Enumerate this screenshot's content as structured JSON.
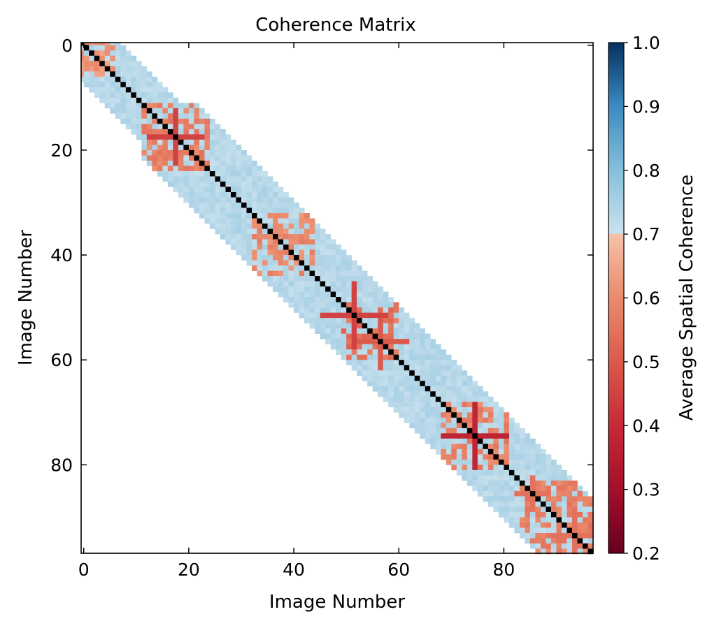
{
  "chart_data": {
    "type": "heatmap",
    "title": "Coherence Matrix",
    "xlabel": "Image Number",
    "ylabel": "Image Number",
    "n_images": 98,
    "xlim": [
      0,
      97
    ],
    "ylim": [
      97,
      0
    ],
    "x_ticks": [
      "0",
      "20",
      "40",
      "60",
      "80"
    ],
    "y_ticks": [
      "0",
      "20",
      "40",
      "60",
      "80"
    ],
    "colorbar": {
      "label": "Average Spatial Coherence",
      "range": [
        0.2,
        1.0
      ],
      "ticks": [
        "0.2",
        "0.3",
        "0.4",
        "0.5",
        "0.6",
        "0.7",
        "0.8",
        "0.9",
        "1.0"
      ],
      "colormap": "RdBu",
      "stops": [
        {
          "value": 0.2,
          "color": "#67001f"
        },
        {
          "value": 0.3,
          "color": "#a50f2a"
        },
        {
          "value": 0.4,
          "color": "#c72a37"
        },
        {
          "value": 0.5,
          "color": "#db5a4c"
        },
        {
          "value": 0.6,
          "color": "#ea8a6c"
        },
        {
          "value": 0.7,
          "color": "#f6c2a8"
        },
        {
          "value": 0.701,
          "color": "#cbe2ee"
        },
        {
          "value": 0.8,
          "color": "#86bfdb"
        },
        {
          "value": 0.9,
          "color": "#3c8bc1"
        },
        {
          "value": 1.0,
          "color": "#053061"
        }
      ]
    },
    "matrix_structure": {
      "band_halfwidth_near_start": 7,
      "band_halfwidth_elsewhere": 10,
      "diagonal_value": 1.0,
      "typical_offdiagonal_value": 0.73,
      "low_coherence_images": [
        {
          "image": 18,
          "value": 0.45,
          "extent": 5
        },
        {
          "image": 37,
          "value": 0.6,
          "extent": 4
        },
        {
          "image": 52,
          "value": 0.45,
          "extent": 6
        },
        {
          "image": 57,
          "value": 0.5,
          "extent": 5
        },
        {
          "image": 75,
          "value": 0.38,
          "extent": 6
        },
        {
          "image": 86,
          "value": 0.55,
          "extent": 3
        },
        {
          "image": 94,
          "value": 0.55,
          "extent": 4
        }
      ],
      "low_coherence_regions": [
        {
          "from": 0,
          "to": 6,
          "value": 0.62
        },
        {
          "from": 12,
          "to": 24,
          "value": 0.58
        },
        {
          "from": 33,
          "to": 44,
          "value": 0.6
        },
        {
          "from": 50,
          "to": 60,
          "value": 0.55
        },
        {
          "from": 69,
          "to": 81,
          "value": 0.58
        },
        {
          "from": 84,
          "to": 97,
          "value": 0.58
        }
      ]
    }
  }
}
